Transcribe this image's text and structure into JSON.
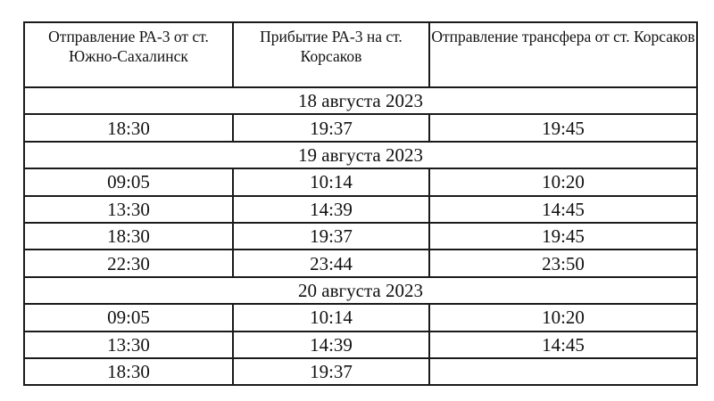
{
  "headers": [
    "Отправление РА-3 от ст.  Южно-Сахалинск",
    "Прибытие РА-3 на ст. Корсаков",
    "Отправление трансфера  от ст. Корсаков"
  ],
  "days": [
    {
      "date": "18 августа 2023",
      "rows": [
        [
          "18:30",
          "19:37",
          "19:45"
        ]
      ]
    },
    {
      "date": "19 августа 2023",
      "rows": [
        [
          "09:05",
          "10:14",
          "10:20"
        ],
        [
          "13:30",
          "14:39",
          "14:45"
        ],
        [
          "18:30",
          "19:37",
          "19:45"
        ],
        [
          "22:30",
          "23:44",
          "23:50"
        ]
      ]
    },
    {
      "date": "20 августа 2023",
      "rows": [
        [
          "09:05",
          "10:14",
          "10:20"
        ],
        [
          "13:30",
          "14:39",
          "14:45"
        ],
        [
          "18:30",
          "19:37",
          ""
        ]
      ]
    }
  ]
}
